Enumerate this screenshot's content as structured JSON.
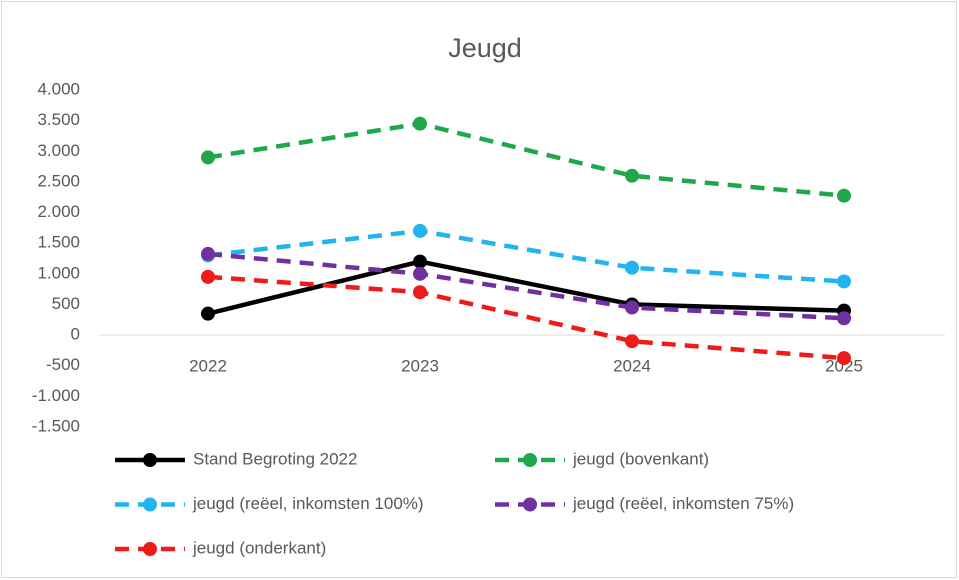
{
  "chart_data": {
    "type": "line",
    "title": "Jeugd",
    "categories": [
      "2022",
      "2023",
      "2024",
      "2025"
    ],
    "series": [
      {
        "name": "Stand Begroting 2022",
        "color": "#000000",
        "dash": "solid",
        "values": [
          350,
          1200,
          500,
          400
        ]
      },
      {
        "name": "jeugd (bovenkant)",
        "color": "#1ea84b",
        "dash": "dashed",
        "values": [
          2900,
          3450,
          2600,
          2275
        ]
      },
      {
        "name": "jeugd (reëel, inkomsten 100%)",
        "color": "#21b4ee",
        "dash": "dashed",
        "values": [
          1300,
          1700,
          1100,
          875
        ]
      },
      {
        "name": "jeugd (reëel, inkomsten 75%)",
        "color": "#7030a0",
        "dash": "dashed",
        "values": [
          1325,
          1000,
          450,
          275
        ]
      },
      {
        "name": "jeugd (onderkant)",
        "color": "#f01a1a",
        "dash": "dashed",
        "values": [
          950,
          700,
          -100,
          -375
        ]
      }
    ],
    "ylim": [
      -1500,
      4000
    ],
    "yticks": [
      {
        "value": 4000,
        "label": "4.000"
      },
      {
        "value": 3500,
        "label": "3.500"
      },
      {
        "value": 3000,
        "label": "3.000"
      },
      {
        "value": 2500,
        "label": "2.500"
      },
      {
        "value": 2000,
        "label": "2.000"
      },
      {
        "value": 1500,
        "label": "1.500"
      },
      {
        "value": 1000,
        "label": "1.000"
      },
      500,
      0,
      -500,
      {
        "value": -1000,
        "label": "-1.000"
      },
      {
        "value": -1500,
        "label": "-1.500"
      }
    ],
    "grid": false,
    "legend": "bottom"
  }
}
